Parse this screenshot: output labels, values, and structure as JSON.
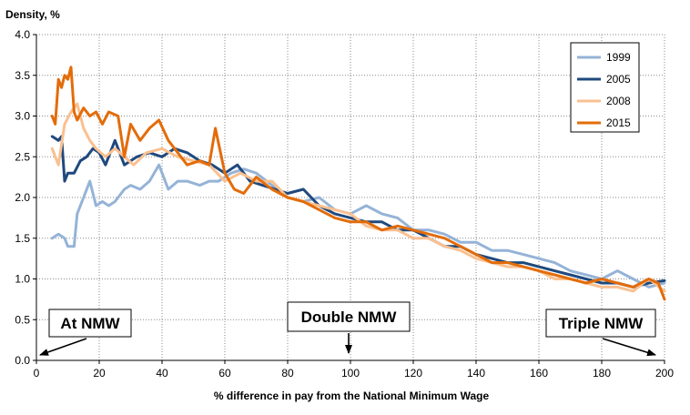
{
  "chart_data": {
    "type": "line",
    "ylabel": "Density, %",
    "xlabel": "% difference in pay from the National Minimum Wage",
    "xlim": [
      0,
      200
    ],
    "ylim": [
      0,
      4.0
    ],
    "xticks": [
      "0",
      "20",
      "40",
      "60",
      "80",
      "100",
      "120",
      "140",
      "160",
      "180",
      "200"
    ],
    "yticks": [
      "0.0",
      "0.5",
      "1.0",
      "1.5",
      "2.0",
      "2.5",
      "3.0",
      "3.5",
      "4.0"
    ],
    "grid": true,
    "legend_position": "top-right",
    "series": [
      {
        "name": "1999",
        "color": "#95b3d7",
        "x": [
          5,
          7,
          9,
          10,
          12,
          13,
          15,
          17,
          19,
          21,
          23,
          25,
          28,
          30,
          33,
          36,
          39,
          42,
          45,
          48,
          52,
          55,
          58,
          62,
          66,
          70,
          75,
          80,
          85,
          90,
          95,
          100,
          105,
          110,
          115,
          120,
          125,
          130,
          135,
          140,
          145,
          150,
          155,
          160,
          165,
          170,
          175,
          180,
          185,
          190,
          195,
          200
        ],
        "y": [
          1.5,
          1.55,
          1.5,
          1.4,
          1.4,
          1.8,
          2.0,
          2.2,
          1.9,
          1.95,
          1.9,
          1.95,
          2.1,
          2.15,
          2.1,
          2.2,
          2.4,
          2.1,
          2.2,
          2.2,
          2.15,
          2.2,
          2.2,
          2.3,
          2.35,
          2.3,
          2.15,
          2.0,
          1.95,
          2.0,
          1.85,
          1.8,
          1.9,
          1.8,
          1.75,
          1.6,
          1.6,
          1.55,
          1.45,
          1.45,
          1.35,
          1.35,
          1.3,
          1.25,
          1.2,
          1.1,
          1.05,
          1.0,
          1.1,
          1.0,
          0.9,
          0.95
        ]
      },
      {
        "name": "2005",
        "color": "#1f497d",
        "x": [
          5,
          7,
          8,
          9,
          10,
          12,
          14,
          16,
          18,
          20,
          22,
          25,
          28,
          32,
          36,
          40,
          44,
          48,
          52,
          56,
          60,
          64,
          68,
          72,
          76,
          80,
          85,
          90,
          95,
          100,
          105,
          110,
          115,
          120,
          125,
          130,
          135,
          140,
          145,
          150,
          155,
          160,
          165,
          170,
          175,
          180,
          185,
          190,
          195,
          200
        ],
        "y": [
          2.75,
          2.7,
          2.75,
          2.2,
          2.3,
          2.3,
          2.45,
          2.5,
          2.6,
          2.55,
          2.4,
          2.7,
          2.4,
          2.5,
          2.55,
          2.5,
          2.6,
          2.55,
          2.45,
          2.4,
          2.3,
          2.4,
          2.2,
          2.15,
          2.1,
          2.05,
          2.1,
          1.9,
          1.8,
          1.75,
          1.7,
          1.7,
          1.6,
          1.6,
          1.5,
          1.4,
          1.4,
          1.3,
          1.25,
          1.2,
          1.2,
          1.15,
          1.1,
          1.05,
          1.0,
          0.95,
          0.95,
          0.9,
          0.95,
          0.98
        ]
      },
      {
        "name": "2008",
        "color": "#fac090",
        "x": [
          5,
          7,
          9,
          11,
          13,
          15,
          17,
          19,
          22,
          25,
          28,
          31,
          35,
          40,
          45,
          50,
          55,
          60,
          65,
          70,
          75,
          80,
          85,
          90,
          95,
          100,
          105,
          110,
          115,
          120,
          125,
          130,
          135,
          140,
          145,
          150,
          155,
          160,
          165,
          170,
          175,
          180,
          185,
          190,
          195,
          200
        ],
        "y": [
          2.6,
          2.4,
          2.9,
          3.05,
          3.15,
          2.85,
          2.7,
          2.6,
          2.5,
          2.6,
          2.5,
          2.4,
          2.55,
          2.6,
          2.5,
          2.45,
          2.4,
          2.2,
          2.3,
          2.2,
          2.2,
          2.0,
          1.95,
          1.9,
          1.85,
          1.8,
          1.65,
          1.6,
          1.6,
          1.5,
          1.5,
          1.4,
          1.35,
          1.25,
          1.2,
          1.15,
          1.15,
          1.1,
          1.0,
          1.0,
          0.95,
          0.9,
          0.9,
          0.85,
          1.0,
          0.85
        ]
      },
      {
        "name": "2015",
        "color": "#e36c0a",
        "x": [
          5,
          6,
          7,
          8,
          9,
          10,
          11,
          12,
          13,
          15,
          17,
          19,
          21,
          23,
          26,
          28,
          30,
          33,
          36,
          39,
          42,
          45,
          48,
          52,
          55,
          57,
          60,
          63,
          66,
          70,
          75,
          80,
          85,
          90,
          95,
          100,
          105,
          110,
          115,
          120,
          125,
          130,
          135,
          140,
          145,
          150,
          155,
          160,
          165,
          170,
          175,
          180,
          185,
          190,
          195,
          198,
          200
        ],
        "y": [
          3.0,
          2.9,
          3.45,
          3.35,
          3.5,
          3.45,
          3.6,
          3.05,
          2.95,
          3.1,
          3.0,
          3.05,
          2.9,
          3.05,
          3.0,
          2.5,
          2.9,
          2.7,
          2.85,
          2.95,
          2.7,
          2.55,
          2.4,
          2.45,
          2.4,
          2.85,
          2.3,
          2.1,
          2.05,
          2.25,
          2.1,
          2.0,
          1.95,
          1.85,
          1.75,
          1.7,
          1.7,
          1.6,
          1.65,
          1.6,
          1.55,
          1.5,
          1.4,
          1.3,
          1.2,
          1.2,
          1.15,
          1.1,
          1.05,
          1.0,
          0.95,
          1.0,
          0.95,
          0.9,
          1.0,
          0.95,
          0.75
        ]
      }
    ],
    "annotations": [
      {
        "label": "At NMW",
        "arrow_to_x": 0
      },
      {
        "label": "Double NMW",
        "arrow_to_x": 100
      },
      {
        "label": "Triple NMW",
        "arrow_to_x": 200
      }
    ]
  }
}
